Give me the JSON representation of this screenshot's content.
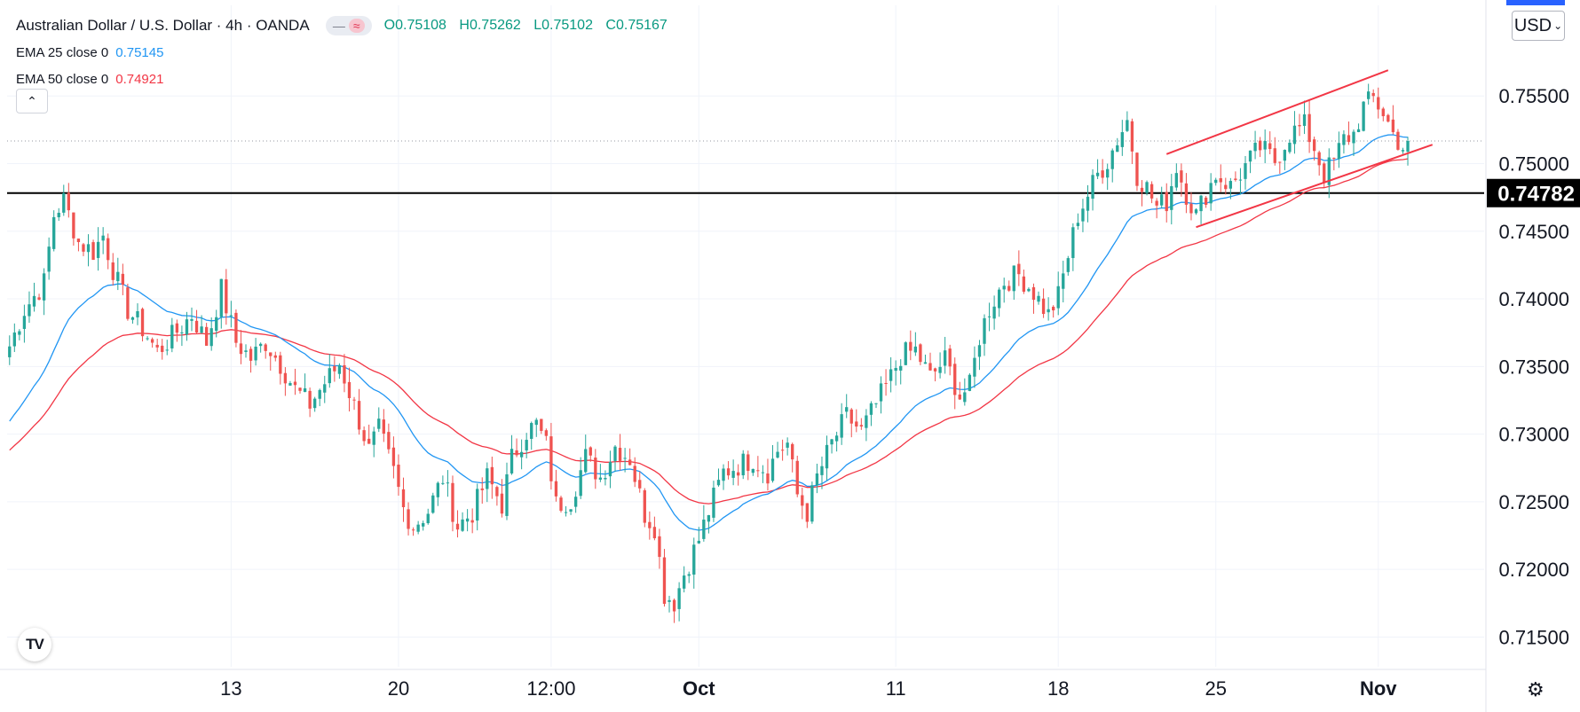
{
  "header": {
    "title": "Australian Dollar / U.S. Dollar · 4h · OANDA",
    "badge_left": "—",
    "badge_right": "≈",
    "ohlc": {
      "o": "O0.75108",
      "h": "H0.75262",
      "l": "L0.75102",
      "c": "C0.75167"
    }
  },
  "indicators": [
    {
      "name": "EMA 25 close 0",
      "value": "0.75145",
      "color": "#2196f3"
    },
    {
      "name": "EMA 50 close 0",
      "value": "0.74921",
      "color": "#f23645"
    }
  ],
  "controls": {
    "collapse_icon": "chevron-up-icon",
    "collapse_glyph": "⌃",
    "currency": "USD",
    "currency_chevron": "⌄",
    "logo_text": "TV",
    "settings_glyph": "⚙"
  },
  "colors": {
    "up": "#26a69a",
    "down": "#ef5350",
    "ema25": "#2196f3",
    "ema50": "#f23645",
    "channel": "#f23645",
    "level": "#000000"
  },
  "chart_data": {
    "type": "candlestick",
    "symbol": "AUD/USD",
    "timeframe": "4h",
    "source": "OANDA",
    "ylim": [
      0.7128,
      0.7617
    ],
    "y_ticks": [
      "0.71500",
      "0.72000",
      "0.72500",
      "0.73000",
      "0.73500",
      "0.74000",
      "0.74500",
      "0.75000",
      "0.75500"
    ],
    "x_ticks": [
      "13",
      "20",
      "12:00",
      "Oct",
      "11",
      "18",
      "25",
      "Nov"
    ],
    "x_tick_bars": [
      45,
      79,
      110,
      140,
      180,
      213,
      245,
      278
    ],
    "x_total_bars": 300,
    "horizontal_level": {
      "value": 0.74782,
      "label": "0.74782"
    },
    "current_price": 0.75167,
    "channel": {
      "upper": [
        [
          235,
          0.7507
        ],
        [
          280,
          0.7569
        ]
      ],
      "lower": [
        [
          241,
          0.7453
        ],
        [
          289,
          0.7514
        ]
      ]
    },
    "price_path": [
      [
        0,
        0.7365
      ],
      [
        3,
        0.7392
      ],
      [
        7,
        0.7412
      ],
      [
        9,
        0.7462
      ],
      [
        11,
        0.7473
      ],
      [
        14,
        0.7442
      ],
      [
        17,
        0.7435
      ],
      [
        19,
        0.7447
      ],
      [
        21,
        0.7422
      ],
      [
        24,
        0.7392
      ],
      [
        27,
        0.7378
      ],
      [
        30,
        0.7361
      ],
      [
        33,
        0.7372
      ],
      [
        37,
        0.7388
      ],
      [
        40,
        0.7368
      ],
      [
        43,
        0.7407
      ],
      [
        46,
        0.7368
      ],
      [
        49,
        0.7356
      ],
      [
        52,
        0.7368
      ],
      [
        55,
        0.7352
      ],
      [
        58,
        0.7333
      ],
      [
        61,
        0.7322
      ],
      [
        64,
        0.7338
      ],
      [
        67,
        0.7352
      ],
      [
        70,
        0.7321
      ],
      [
        73,
        0.7288
      ],
      [
        75,
        0.7303
      ],
      [
        78,
        0.7272
      ],
      [
        80,
        0.7245
      ],
      [
        82,
        0.7232
      ],
      [
        85,
        0.7243
      ],
      [
        88,
        0.7268
      ],
      [
        91,
        0.7232
      ],
      [
        94,
        0.7242
      ],
      [
        97,
        0.7268
      ],
      [
        100,
        0.7248
      ],
      [
        102,
        0.7282
      ],
      [
        105,
        0.7302
      ],
      [
        107,
        0.7307
      ],
      [
        109,
        0.7292
      ],
      [
        111,
        0.7248
      ],
      [
        114,
        0.7252
      ],
      [
        117,
        0.7283
      ],
      [
        120,
        0.7268
      ],
      [
        123,
        0.7291
      ],
      [
        126,
        0.7282
      ],
      [
        129,
        0.7241
      ],
      [
        131,
        0.7232
      ],
      [
        133,
        0.7182
      ],
      [
        135,
        0.7176
      ],
      [
        137,
        0.7197
      ],
      [
        140,
        0.7222
      ],
      [
        142,
        0.7243
      ],
      [
        145,
        0.7272
      ],
      [
        148,
        0.7277
      ],
      [
        151,
        0.7282
      ],
      [
        154,
        0.7272
      ],
      [
        156,
        0.7288
      ],
      [
        158,
        0.7293
      ],
      [
        160,
        0.7255
      ],
      [
        162,
        0.7242
      ],
      [
        164,
        0.7268
      ],
      [
        167,
        0.7293
      ],
      [
        170,
        0.7313
      ],
      [
        173,
        0.7302
      ],
      [
        176,
        0.7322
      ],
      [
        179,
        0.7342
      ],
      [
        181,
        0.7358
      ],
      [
        184,
        0.7362
      ],
      [
        187,
        0.7342
      ],
      [
        190,
        0.7355
      ],
      [
        193,
        0.7328
      ],
      [
        195,
        0.7335
      ],
      [
        197,
        0.7372
      ],
      [
        199,
        0.7393
      ],
      [
        202,
        0.7413
      ],
      [
        205,
        0.7418
      ],
      [
        208,
        0.7405
      ],
      [
        211,
        0.7388
      ],
      [
        213,
        0.7402
      ],
      [
        215,
        0.7432
      ],
      [
        217,
        0.7462
      ],
      [
        219,
        0.7477
      ],
      [
        221,
        0.7492
      ],
      [
        223,
        0.7502
      ],
      [
        225,
        0.7518
      ],
      [
        227,
        0.7532
      ],
      [
        229,
        0.7492
      ],
      [
        231,
        0.7482
      ],
      [
        233,
        0.7468
      ],
      [
        235,
        0.7472
      ],
      [
        237,
        0.7498
      ],
      [
        239,
        0.7478
      ],
      [
        241,
        0.7462
      ],
      [
        243,
        0.7478
      ],
      [
        245,
        0.7492
      ],
      [
        248,
        0.7483
      ],
      [
        251,
        0.7498
      ],
      [
        254,
        0.7512
      ],
      [
        257,
        0.7502
      ],
      [
        260,
        0.7522
      ],
      [
        263,
        0.7528
      ],
      [
        265,
        0.7512
      ],
      [
        267,
        0.7492
      ],
      [
        269,
        0.7502
      ],
      [
        271,
        0.7518
      ],
      [
        273,
        0.7522
      ],
      [
        275,
        0.7542
      ],
      [
        277,
        0.7548
      ],
      [
        279,
        0.7538
      ],
      [
        281,
        0.7522
      ],
      [
        283,
        0.7512
      ],
      [
        284,
        0.7517
      ]
    ]
  }
}
